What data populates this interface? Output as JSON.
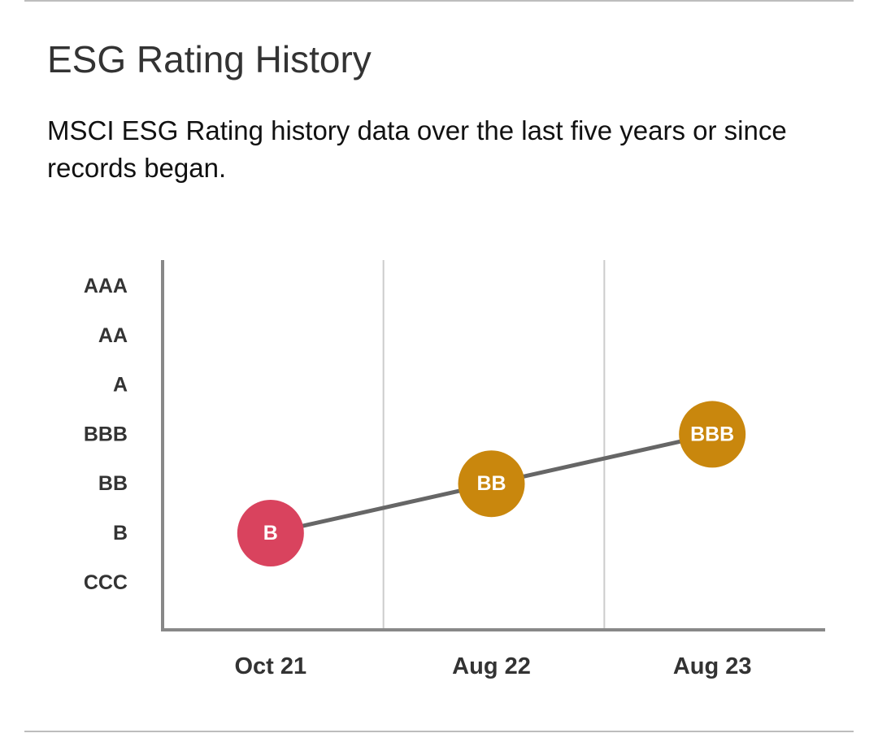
{
  "header": {
    "title": "ESG Rating History",
    "subtitle": "MSCI ESG Rating history data over the last five years or since records began."
  },
  "chart_data": {
    "type": "line",
    "title": "",
    "xlabel": "",
    "ylabel": "",
    "y_categories": [
      "CCC",
      "B",
      "BB",
      "BBB",
      "A",
      "AA",
      "AAA"
    ],
    "categories": [
      "Oct 21",
      "Aug 22",
      "Aug 23"
    ],
    "values": [
      "B",
      "BB",
      "BBB"
    ],
    "point_labels": [
      "B",
      "BB",
      "BBB"
    ],
    "point_colors": [
      "#d9435e",
      "#c9870d",
      "#c9870d"
    ],
    "line_color": "#666666",
    "grid": true,
    "legend": "none"
  }
}
